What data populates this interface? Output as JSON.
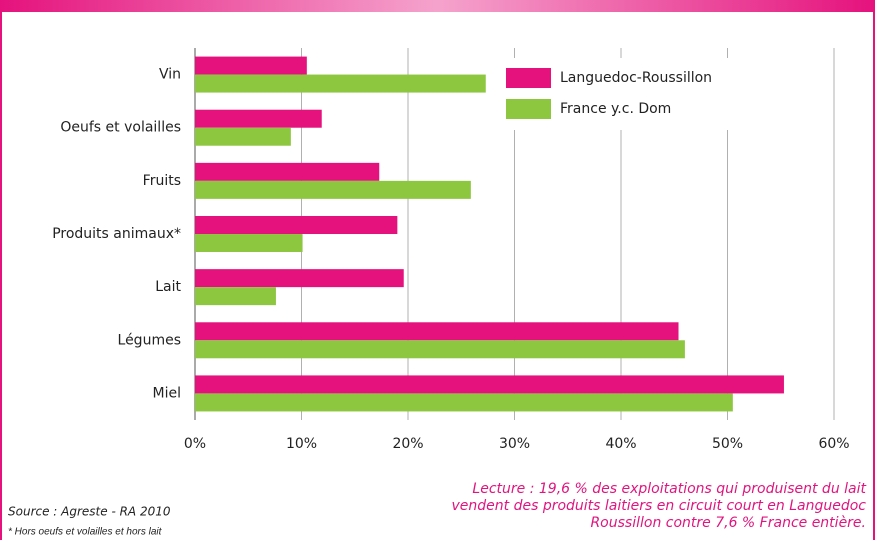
{
  "chart_data": {
    "type": "barh",
    "categories": [
      "Vin",
      "Oeufs et volailles",
      "Fruits",
      "Produits animaux*",
      "Lait",
      "Légumes",
      "Miel"
    ],
    "series": [
      {
        "name": "Languedoc-Roussillon",
        "color": "#e5127d",
        "values": [
          10.5,
          11.9,
          17.3,
          19.0,
          19.6,
          45.4,
          55.3
        ]
      },
      {
        "name": "France y.c. Dom",
        "color": "#8dc63f",
        "values": [
          27.3,
          9.0,
          25.9,
          10.1,
          7.6,
          46.0,
          50.5
        ]
      }
    ],
    "xlim": [
      0,
      60
    ],
    "xticks": [
      {
        "value": 0,
        "label": "0%"
      },
      {
        "value": 10,
        "label": "10%"
      },
      {
        "value": 20,
        "label": "20%"
      },
      {
        "value": 30,
        "label": "30%"
      },
      {
        "value": 40,
        "label": "40%"
      },
      {
        "value": 50,
        "label": "50%"
      },
      {
        "value": 60,
        "label": "60%"
      }
    ],
    "grid": true,
    "legend": "top-right",
    "annotation": [
      "Lecture : 19,6 % des exploitations qui produisent du lait",
      "vendent des produits laitiers en circuit court en Languedoc",
      "Roussillon contre 7,6 % France entière."
    ],
    "source": "Source : Agreste - RA 2010",
    "footnote": "* Hors oeufs et volailles et hors lait"
  }
}
